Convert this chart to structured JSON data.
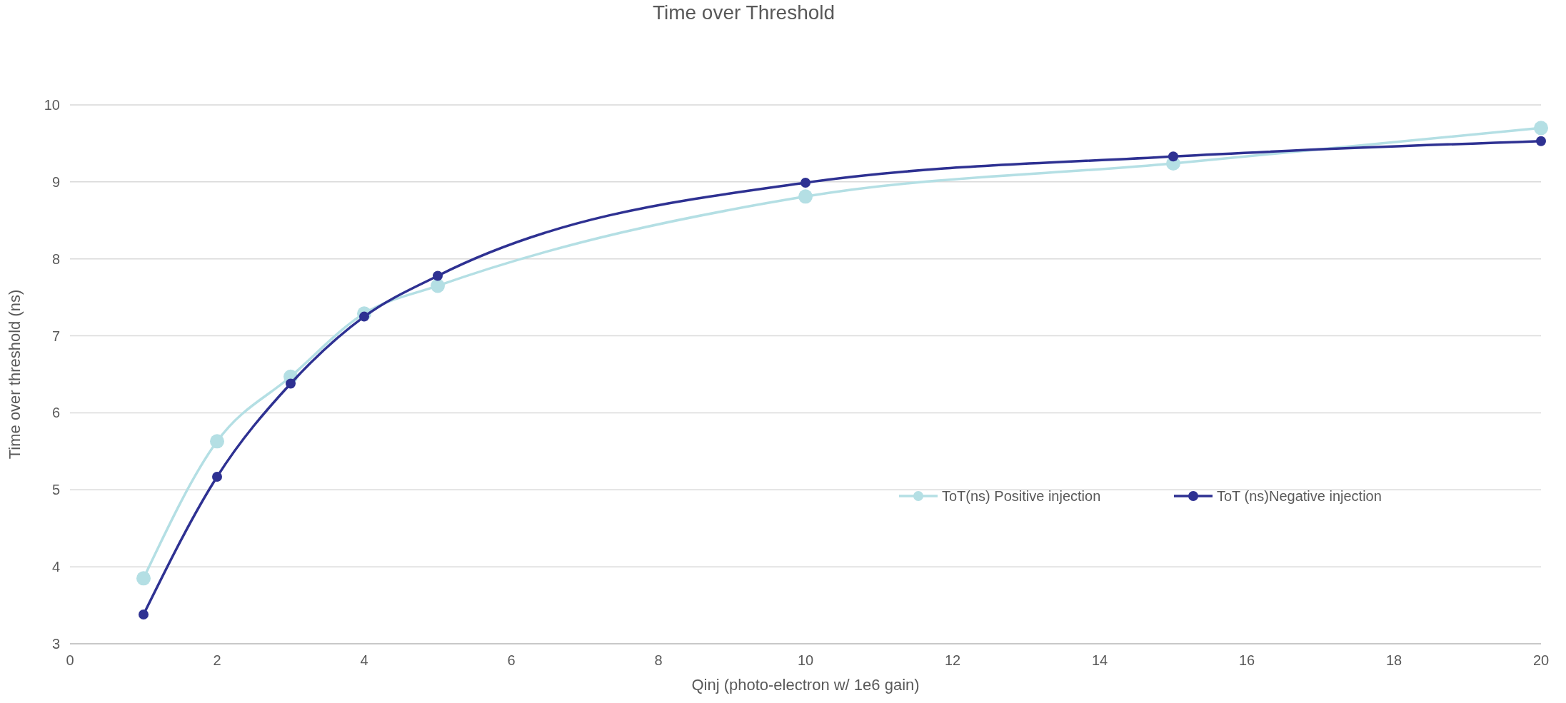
{
  "chart_data": {
    "type": "line",
    "title": "Time over Threshold",
    "xlabel": "Qinj (photo-electron w/ 1e6 gain)",
    "ylabel": "Time over threshold (ns)",
    "xlim": [
      0,
      20
    ],
    "xticks": [
      0,
      2,
      4,
      6,
      8,
      10,
      12,
      14,
      16,
      18,
      20
    ],
    "ylim": [
      3,
      10
    ],
    "yticks": [
      3,
      4,
      5,
      6,
      7,
      8,
      9,
      10
    ],
    "grid": "y",
    "legend": "bottom right",
    "marker": "circle",
    "line_style": "solid",
    "series": [
      {
        "name": "ToT(ns) Positive injection",
        "color": "#b4dfe4",
        "x": [
          1,
          2,
          3,
          4,
          5,
          10,
          15,
          20
        ],
        "values": [
          3.85,
          5.63,
          6.47,
          7.29,
          7.65,
          8.81,
          9.24,
          9.7
        ]
      },
      {
        "name": "ToT (ns)Negative injection",
        "color": "#2e3192",
        "x": [
          1,
          2,
          3,
          4,
          5,
          10,
          15,
          20
        ],
        "values": [
          3.38,
          5.17,
          6.38,
          7.25,
          7.78,
          8.99,
          9.33,
          9.53
        ]
      }
    ]
  }
}
